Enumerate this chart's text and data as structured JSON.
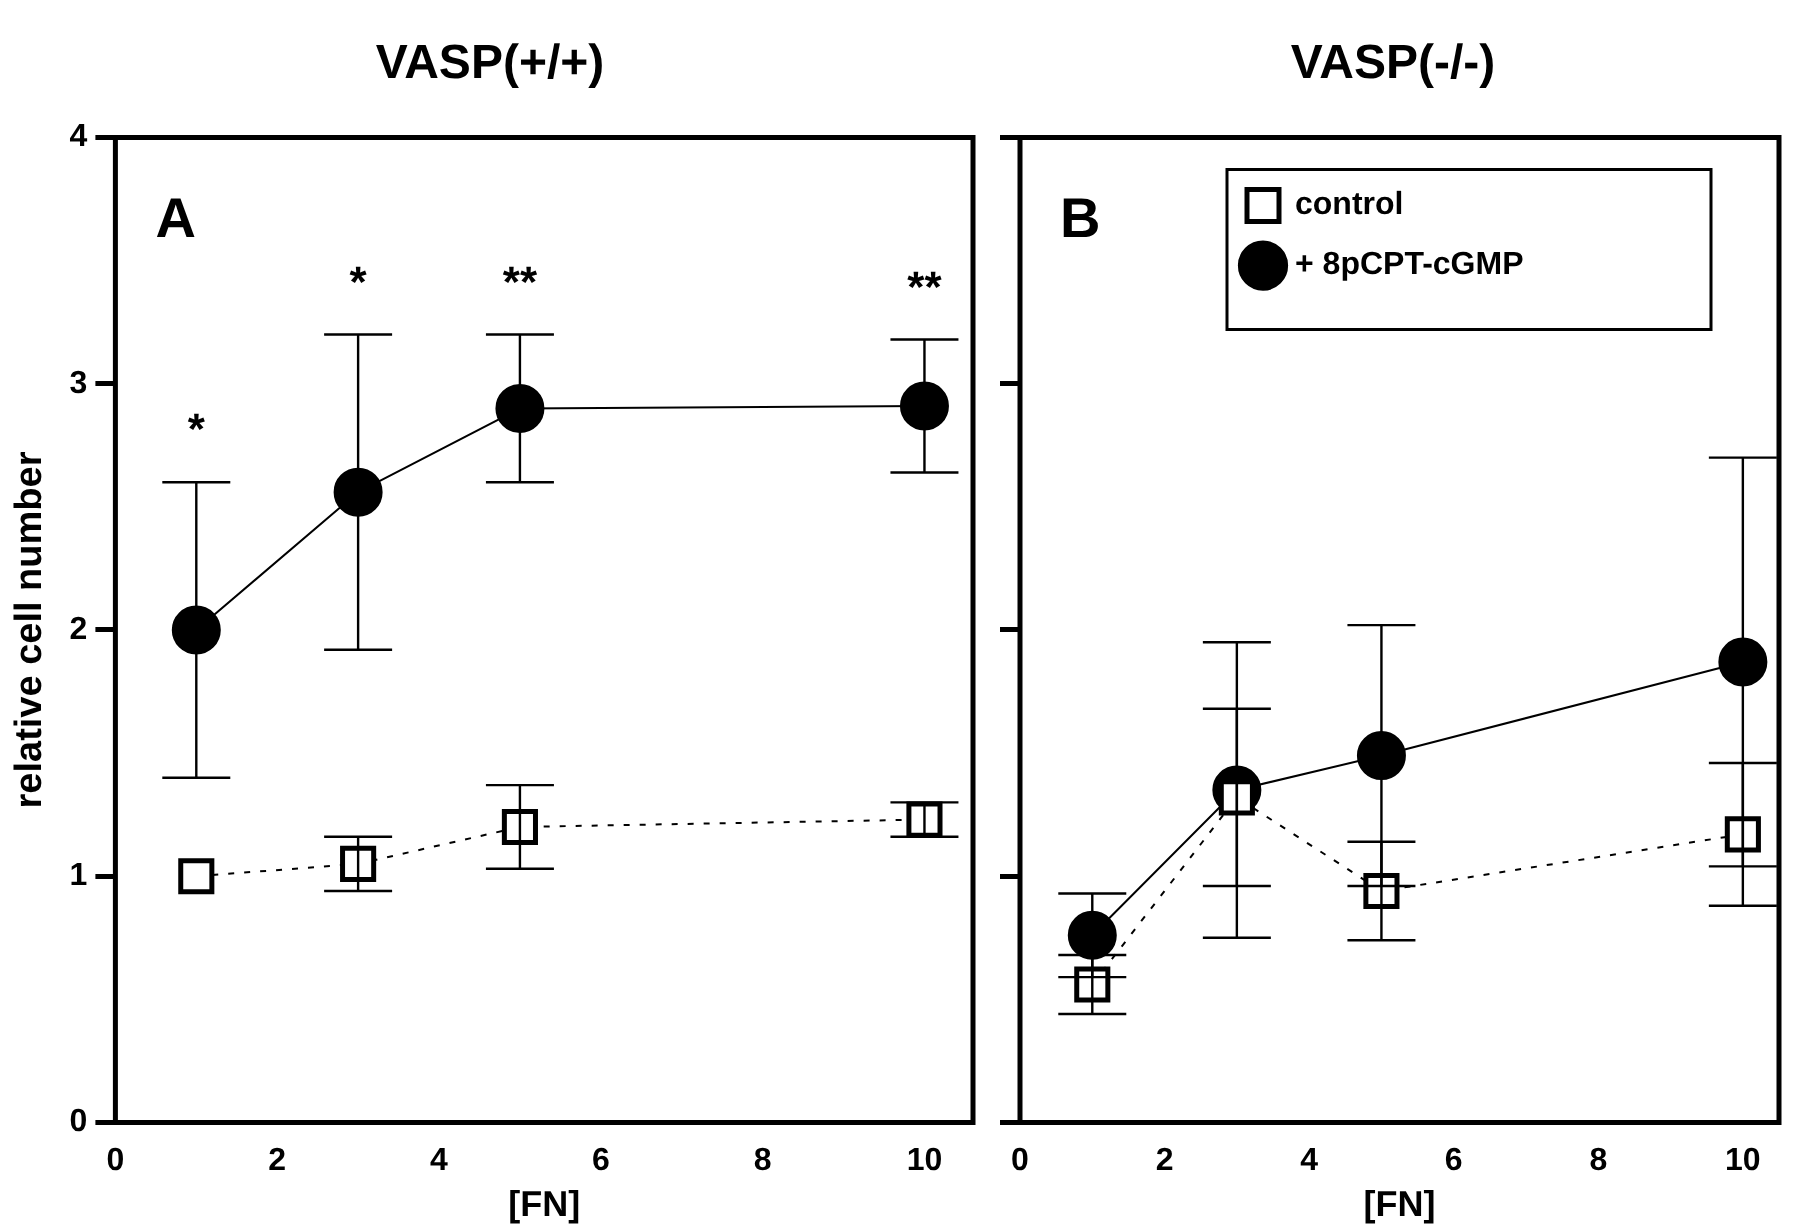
{
  "chart_data": [
    {
      "type": "line",
      "title": "VASP(+/+)",
      "xlabel": "[FN]",
      "ylabel": "relative cell number",
      "xlim": [
        0,
        10.6
      ],
      "xticks": [
        0,
        2,
        4,
        6,
        8,
        10
      ],
      "ylim": [
        0,
        4
      ],
      "yticks": [
        0,
        1,
        2,
        3,
        4
      ],
      "grid": false,
      "legend": false,
      "annotations": [
        "A",
        "*",
        "*",
        "**",
        "**"
      ],
      "x": [
        1,
        3,
        5,
        10
      ],
      "series": [
        {
          "color": "#000000",
          "marker": "square",
          "line_style": "dotted",
          "values": [
            1.0,
            1.05,
            1.2,
            1.23
          ],
          "errors": [
            null,
            0.11,
            0.17,
            0.07
          ]
        },
        {
          "color": "#000000",
          "marker": "circle",
          "line_style": "solid",
          "values": [
            2.0,
            2.56,
            2.9,
            2.91
          ],
          "errors": [
            0.6,
            0.64,
            0.3,
            0.27
          ]
        }
      ]
    },
    {
      "type": "line",
      "title": "VASP(-/-)",
      "xlabel": "[FN]",
      "xlim": [
        0,
        10.5
      ],
      "xticks": [
        0,
        2,
        4,
        6,
        8,
        10
      ],
      "ylim": [
        0,
        4
      ],
      "yticks": [
        0,
        1,
        2,
        3,
        4
      ],
      "grid": false,
      "legend": "top right",
      "tick_labels": "x",
      "annotations": [
        "B"
      ],
      "x": [
        1,
        3,
        5,
        10
      ],
      "series": [
        {
          "name": "control",
          "color": "#000000",
          "marker": "square",
          "line_style": "dotted",
          "values": [
            0.56,
            1.32,
            0.94,
            1.17
          ],
          "errors": [
            0.12,
            0.36,
            0.2,
            0.29
          ]
        },
        {
          "name": "+ 8pCPT-cGMP",
          "color": "#000000",
          "marker": "circle",
          "line_style": "solid",
          "values": [
            0.76,
            1.35,
            1.49,
            1.87
          ],
          "errors": [
            0.17,
            0.6,
            0.53,
            0.83
          ]
        }
      ]
    }
  ]
}
